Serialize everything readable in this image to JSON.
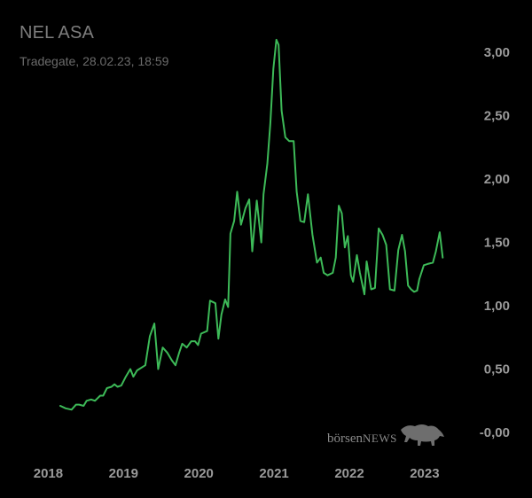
{
  "header": {
    "title": "NEL ASA",
    "subtitle": "Tradegate, 28.02.23, 18:59"
  },
  "watermark": {
    "brand": "börsen",
    "brand_suffix": "NEWS",
    "icon": "bull-icon"
  },
  "colors": {
    "background": "#000000",
    "line": "#3dba58",
    "text": "#9a9a9a"
  },
  "chart_data": {
    "type": "line",
    "x_tick_labels": [
      "2018",
      "2019",
      "2020",
      "2021",
      "2022",
      "2023"
    ],
    "x_ticks": [
      2018,
      2019,
      2020,
      2021,
      2022,
      2023
    ],
    "y_tick_labels": [
      "-0,00",
      "0,50",
      "1,00",
      "1,50",
      "2,00",
      "2,50",
      "3,00"
    ],
    "y_ticks": [
      0,
      0.5,
      1.0,
      1.5,
      2.0,
      2.5,
      3.0
    ],
    "xlim": [
      2017.83,
      2023.39
    ],
    "ylim": [
      0,
      3.05
    ],
    "grid": false,
    "y_axis_position": "right",
    "series": [
      {
        "x": [
          2018.16,
          2018.23,
          2018.31,
          2018.37,
          2018.41,
          2018.47,
          2018.51,
          2018.57,
          2018.62,
          2018.69,
          2018.73,
          2018.78,
          2018.84,
          2018.88,
          2018.92,
          2018.97,
          2019.03,
          2019.09,
          2019.13,
          2019.18,
          2019.29,
          2019.35,
          2019.41,
          2019.46,
          2019.52,
          2019.58,
          2019.64,
          2019.69,
          2019.74,
          2019.78,
          2019.84,
          2019.9,
          2019.95,
          2019.99,
          2020.03,
          2020.11,
          2020.15,
          2020.22,
          2020.26,
          2020.3,
          2020.35,
          2020.39,
          2020.42,
          2020.47,
          2020.51,
          2020.56,
          2020.62,
          2020.67,
          2020.71,
          2020.77,
          2020.83,
          2020.86,
          2020.91,
          2020.95,
          2020.99,
          2021.03,
          2021.06,
          2021.1,
          2021.15,
          2021.2,
          2021.26,
          2021.3,
          2021.35,
          2021.4,
          2021.45,
          2021.51,
          2021.57,
          2021.62,
          2021.66,
          2021.71,
          2021.78,
          2021.82,
          2021.86,
          2021.9,
          2021.94,
          2021.98,
          2022.02,
          2022.05,
          2022.1,
          2022.14,
          2022.2,
          2022.23,
          2022.29,
          2022.34,
          2022.39,
          2022.44,
          2022.49,
          2022.54,
          2022.6,
          2022.65,
          2022.7,
          2022.74,
          2022.78,
          2022.82,
          2022.86,
          2022.9,
          2022.93,
          2022.99,
          2023.04,
          2023.11,
          2023.15,
          2023.2,
          2023.24
        ],
        "y": [
          0.21,
          0.19,
          0.18,
          0.22,
          0.22,
          0.21,
          0.25,
          0.26,
          0.25,
          0.29,
          0.29,
          0.35,
          0.36,
          0.38,
          0.36,
          0.37,
          0.44,
          0.5,
          0.44,
          0.49,
          0.53,
          0.76,
          0.86,
          0.5,
          0.67,
          0.63,
          0.57,
          0.53,
          0.63,
          0.7,
          0.67,
          0.72,
          0.72,
          0.69,
          0.78,
          0.8,
          1.04,
          1.02,
          0.74,
          0.93,
          1.05,
          0.99,
          1.57,
          1.67,
          1.9,
          1.64,
          1.77,
          1.84,
          1.43,
          1.83,
          1.5,
          1.88,
          2.12,
          2.44,
          2.87,
          3.1,
          3.06,
          2.54,
          2.33,
          2.3,
          2.3,
          1.9,
          1.67,
          1.66,
          1.88,
          1.56,
          1.34,
          1.38,
          1.26,
          1.24,
          1.26,
          1.38,
          1.79,
          1.73,
          1.46,
          1.55,
          1.24,
          1.19,
          1.4,
          1.26,
          1.09,
          1.35,
          1.13,
          1.14,
          1.61,
          1.56,
          1.48,
          1.13,
          1.12,
          1.44,
          1.56,
          1.43,
          1.16,
          1.13,
          1.11,
          1.12,
          1.21,
          1.32,
          1.33,
          1.34,
          1.43,
          1.58,
          1.38
        ]
      }
    ]
  }
}
